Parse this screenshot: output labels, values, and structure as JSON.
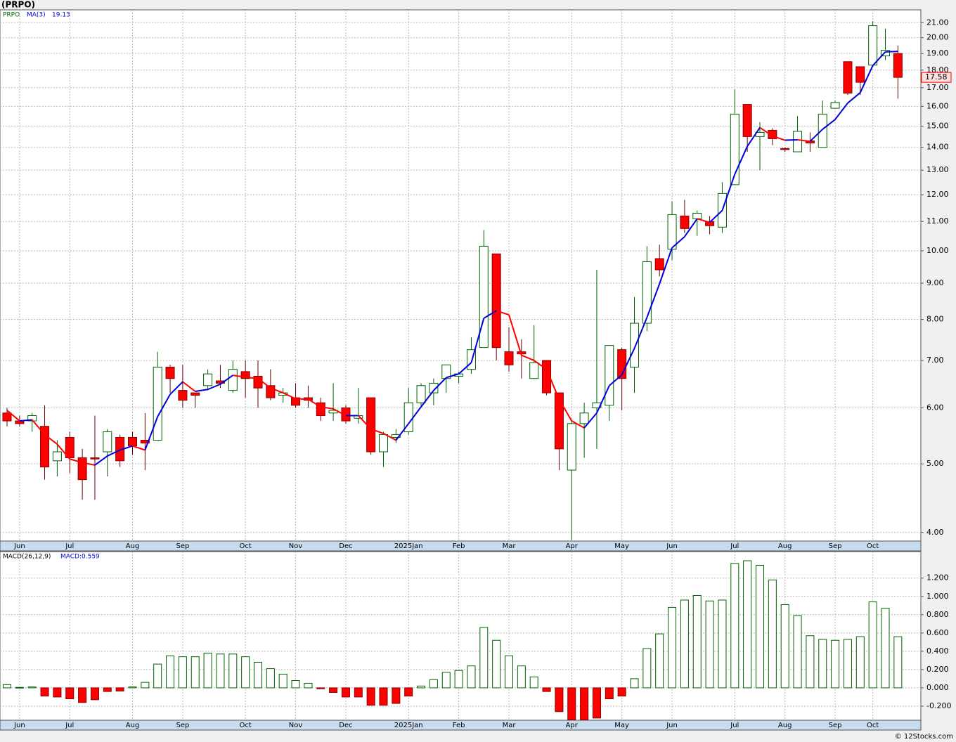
{
  "footer": "© 12Stocks.com",
  "chart_data": [
    {
      "type": "candlestick",
      "title": "(PRPO)",
      "name": "PRPO",
      "log_scale": true,
      "grid": true,
      "up_color": "#006400",
      "down_color": "#ff0000",
      "categories": [
        null,
        "Jun",
        null,
        null,
        null,
        "Jul",
        null,
        null,
        null,
        null,
        "Aug",
        null,
        null,
        null,
        "Sep",
        null,
        null,
        null,
        null,
        "Oct",
        null,
        null,
        null,
        "Nov",
        null,
        null,
        null,
        "Dec",
        null,
        null,
        null,
        null,
        "2025Jan",
        null,
        null,
        null,
        "Feb",
        null,
        null,
        null,
        "Mar",
        null,
        null,
        null,
        null,
        "Apr",
        null,
        null,
        null,
        "May",
        null,
        null,
        null,
        "Jun",
        null,
        null,
        null,
        null,
        "Jul",
        null,
        null,
        null,
        "Aug",
        null,
        null,
        null,
        "Sep",
        null,
        null,
        "Oct",
        null,
        null
      ],
      "open": [
        5.9,
        5.75,
        5.75,
        5.65,
        5.05,
        5.45,
        5.1,
        5.1,
        5.2,
        5.45,
        5.45,
        5.4,
        5.4,
        6.85,
        6.35,
        6.3,
        6.45,
        6.55,
        6.35,
        6.75,
        6.65,
        6.45,
        6.25,
        6.2,
        6.2,
        6.1,
        5.9,
        6.0,
        5.8,
        6.2,
        5.2,
        5.45,
        5.55,
        6.1,
        6.3,
        6.6,
        6.65,
        6.8,
        7.3,
        9.9,
        7.2,
        7.2,
        6.6,
        7.0,
        6.3,
        4.9,
        5.7,
        6.0,
        6.05,
        7.25,
        6.85,
        7.9,
        9.75,
        10.05,
        11.2,
        11.1,
        11.0,
        10.8,
        12.4,
        16.1,
        14.5,
        14.8,
        13.95,
        13.8,
        14.3,
        14.0,
        15.9,
        18.5,
        18.2,
        18.3,
        18.85,
        19.0
      ],
      "high": [
        6.0,
        5.85,
        5.9,
        6.05,
        5.4,
        5.55,
        5.25,
        5.85,
        5.6,
        5.5,
        5.55,
        5.9,
        7.2,
        6.9,
        6.9,
        6.3,
        6.8,
        6.9,
        7.0,
        7.0,
        7.0,
        6.8,
        6.4,
        6.5,
        6.45,
        6.2,
        6.5,
        6.05,
        6.4,
        6.2,
        5.55,
        5.6,
        6.4,
        6.5,
        6.6,
        6.9,
        6.75,
        7.55,
        10.7,
        9.9,
        7.8,
        7.5,
        7.85,
        7.0,
        6.3,
        5.75,
        6.1,
        9.4,
        7.35,
        7.3,
        8.6,
        10.15,
        10.2,
        11.75,
        11.8,
        11.4,
        11.2,
        12.5,
        16.9,
        16.1,
        15.2,
        14.9,
        14.0,
        15.5,
        14.7,
        16.3,
        16.3,
        18.5,
        18.2,
        21.1,
        20.6,
        19.5
      ],
      "low": [
        5.65,
        5.65,
        5.55,
        4.75,
        4.8,
        4.85,
        4.45,
        4.45,
        4.8,
        4.95,
        5.15,
        4.9,
        5.4,
        6.3,
        6.0,
        6.0,
        6.35,
        6.4,
        6.3,
        6.2,
        6.0,
        6.15,
        6.1,
        6.0,
        6.0,
        5.75,
        5.75,
        5.7,
        5.7,
        5.15,
        4.95,
        5.35,
        5.5,
        6.0,
        6.05,
        6.3,
        6.5,
        6.7,
        7.3,
        7.0,
        6.75,
        6.6,
        6.6,
        6.25,
        4.9,
        3.9,
        5.1,
        5.25,
        5.75,
        5.95,
        6.3,
        7.7,
        9.2,
        9.7,
        10.6,
        10.5,
        10.55,
        10.6,
        12.4,
        13.8,
        13.0,
        14.1,
        13.8,
        13.8,
        13.8,
        14.0,
        15.9,
        16.6,
        16.6,
        18.2,
        18.6,
        16.4
      ],
      "close": [
        5.75,
        5.7,
        5.85,
        4.95,
        5.2,
        5.1,
        4.75,
        5.08,
        5.55,
        5.05,
        5.3,
        5.35,
        6.85,
        6.6,
        6.15,
        6.25,
        6.7,
        6.5,
        6.8,
        6.6,
        6.4,
        6.2,
        6.3,
        6.05,
        6.15,
        5.85,
        5.95,
        5.75,
        5.85,
        5.2,
        5.5,
        5.5,
        6.1,
        6.45,
        6.5,
        6.9,
        6.7,
        7.25,
        10.15,
        7.3,
        6.9,
        7.15,
        6.95,
        6.3,
        5.25,
        5.7,
        5.9,
        6.1,
        7.35,
        6.6,
        7.9,
        9.65,
        9.4,
        11.25,
        10.75,
        11.3,
        10.85,
        12.05,
        15.6,
        14.5,
        14.7,
        14.4,
        13.9,
        14.75,
        14.2,
        15.6,
        16.2,
        16.7,
        17.3,
        20.8,
        19.2,
        17.58
      ],
      "ma": {
        "name": "MA(3)",
        "value_label": "19.13",
        "up_color": "#0000dd",
        "down_color": "#ff0000",
        "values": [
          5.95,
          5.75,
          5.77,
          5.5,
          5.33,
          5.08,
          5.02,
          4.98,
          5.13,
          5.23,
          5.3,
          5.23,
          5.83,
          6.27,
          6.53,
          6.33,
          6.37,
          6.48,
          6.67,
          6.63,
          6.6,
          6.4,
          6.3,
          6.18,
          6.17,
          6.02,
          5.98,
          5.85,
          5.85,
          5.6,
          5.52,
          5.4,
          5.7,
          6.02,
          6.35,
          6.62,
          6.7,
          6.95,
          8.03,
          8.23,
          8.12,
          7.12,
          7.0,
          6.8,
          6.17,
          5.75,
          5.62,
          5.9,
          6.45,
          6.68,
          7.28,
          8.05,
          8.98,
          10.1,
          10.47,
          11.1,
          10.97,
          11.4,
          12.83,
          14.05,
          14.93,
          14.53,
          14.33,
          14.35,
          14.28,
          14.85,
          15.33,
          16.17,
          16.73,
          18.27,
          19.1,
          19.13
        ]
      },
      "ylim": [
        3.89,
        21.9
      ],
      "yticks": [
        {
          "value": 4,
          "label": "4.00"
        },
        {
          "value": 5,
          "label": "5.00"
        },
        {
          "value": 6,
          "label": "6.00"
        },
        {
          "value": 7,
          "label": "7.00"
        },
        {
          "value": 8,
          "label": "8.00"
        },
        {
          "value": 9,
          "label": "9.00"
        },
        {
          "value": 10,
          "label": "10.00"
        },
        {
          "value": 11,
          "label": "11.00"
        },
        {
          "value": 12,
          "label": "12.00"
        },
        {
          "value": 13,
          "label": "13.00"
        },
        {
          "value": 14,
          "label": "14.00"
        },
        {
          "value": 15,
          "label": "15.00"
        },
        {
          "value": 16,
          "label": "16.00"
        },
        {
          "value": 17,
          "label": "17.00"
        },
        {
          "value": 18,
          "label": "18.00"
        },
        {
          "value": 19,
          "label": "19.00"
        },
        {
          "value": 20,
          "label": "20.00"
        },
        {
          "value": 21,
          "label": "21.00"
        }
      ]
    },
    {
      "type": "macd",
      "name": "MACD(26,12,9)",
      "value_label": "MACD:0.559",
      "grid": true,
      "pos_color": "#006400",
      "neg_color": "#ff0000",
      "categories": [
        null,
        "Jun",
        null,
        null,
        null,
        "Jul",
        null,
        null,
        null,
        null,
        "Aug",
        null,
        null,
        null,
        "Sep",
        null,
        null,
        null,
        null,
        "Oct",
        null,
        null,
        null,
        "Nov",
        null,
        null,
        null,
        "Dec",
        null,
        null,
        null,
        null,
        "2025Jan",
        null,
        null,
        null,
        "Feb",
        null,
        null,
        null,
        "Mar",
        null,
        null,
        null,
        null,
        "Apr",
        null,
        null,
        null,
        "May",
        null,
        null,
        null,
        "Jun",
        null,
        null,
        null,
        null,
        "Jul",
        null,
        null,
        null,
        "Aug",
        null,
        null,
        null,
        "Sep",
        null,
        null,
        "Oct",
        null,
        null
      ],
      "values": [
        0.035,
        0.005,
        0.01,
        -0.09,
        -0.1,
        -0.12,
        -0.16,
        -0.13,
        -0.04,
        -0.035,
        0.01,
        0.06,
        0.26,
        0.35,
        0.34,
        0.34,
        0.38,
        0.37,
        0.37,
        0.34,
        0.28,
        0.21,
        0.15,
        0.08,
        0.05,
        -0.01,
        -0.05,
        -0.1,
        -0.1,
        -0.19,
        -0.19,
        -0.17,
        -0.09,
        0.02,
        0.09,
        0.17,
        0.19,
        0.24,
        0.66,
        0.52,
        0.35,
        0.24,
        0.12,
        -0.04,
        -0.26,
        -0.35,
        -0.35,
        -0.33,
        -0.12,
        -0.09,
        0.1,
        0.43,
        0.59,
        0.88,
        0.96,
        1.01,
        0.95,
        0.96,
        1.36,
        1.39,
        1.34,
        1.18,
        0.91,
        0.79,
        0.57,
        0.53,
        0.52,
        0.53,
        0.56,
        0.94,
        0.87,
        0.559
      ],
      "ylim": [
        -0.354,
        1.49
      ],
      "yticks": [
        {
          "value": -0.2,
          "label": "-0.200"
        },
        {
          "value": 0,
          "label": "0.000"
        },
        {
          "value": 0.2,
          "label": "0.200"
        },
        {
          "value": 0.4,
          "label": "0.400"
        },
        {
          "value": 0.6,
          "label": "0.600"
        },
        {
          "value": 0.8,
          "label": "0.800"
        },
        {
          "value": 1,
          "label": "1.000"
        },
        {
          "value": 1.2,
          "label": "1.200"
        }
      ]
    }
  ]
}
